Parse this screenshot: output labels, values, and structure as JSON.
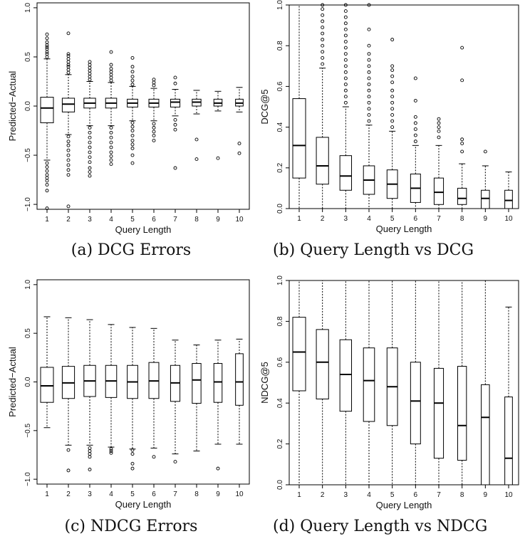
{
  "chart_data": [
    {
      "type": "box",
      "caption": "(a) DCG Errors",
      "xlabel": "Query Length",
      "ylabel": "Predicted−Actual",
      "ylim": [
        -1.05,
        1.05
      ],
      "yticks": [
        -1.0,
        -0.5,
        0.0,
        0.5,
        1.0
      ],
      "ytick_labels": [
        "−1.0",
        "−0.5",
        "0.0",
        "0.5",
        "1.0"
      ],
      "categories": [
        "1",
        "2",
        "3",
        "4",
        "5",
        "6",
        "7",
        "8",
        "9",
        "10"
      ],
      "boxes": [
        {
          "whisker_low": -0.55,
          "q1": -0.17,
          "median": -0.02,
          "q3": 0.09,
          "whisker_high": 0.48,
          "outliers": [
            0.5,
            0.53,
            0.55,
            0.58,
            0.6,
            0.62,
            0.65,
            0.69,
            0.73,
            -0.58,
            -0.62,
            -0.66,
            -0.7,
            -0.73,
            -0.76,
            -0.8,
            -0.86,
            -1.04
          ]
        },
        {
          "whisker_low": -0.29,
          "q1": -0.06,
          "median": 0.02,
          "q3": 0.08,
          "whisker_high": 0.32,
          "outliers": [
            0.34,
            0.37,
            0.4,
            0.42,
            0.45,
            0.48,
            0.51,
            0.53,
            0.74,
            -0.31,
            -0.36,
            -0.4,
            -0.45,
            -0.5,
            -0.55,
            -0.6,
            -0.65,
            -0.7,
            -1.02
          ]
        },
        {
          "whisker_low": -0.2,
          "q1": -0.02,
          "median": 0.03,
          "q3": 0.08,
          "whisker_high": 0.25,
          "outliers": [
            0.27,
            0.3,
            0.33,
            0.36,
            0.39,
            0.42,
            0.45,
            -0.22,
            -0.27,
            -0.32,
            -0.37,
            -0.42,
            -0.47,
            -0.52,
            -0.57,
            -0.63,
            -0.67,
            -0.71
          ]
        },
        {
          "whisker_low": -0.2,
          "q1": -0.02,
          "median": 0.03,
          "q3": 0.08,
          "whisker_high": 0.24,
          "outliers": [
            0.26,
            0.29,
            0.32,
            0.35,
            0.38,
            0.42,
            0.55,
            -0.22,
            -0.27,
            -0.32,
            -0.37,
            -0.42,
            -0.47,
            -0.51,
            -0.55,
            -0.59
          ]
        },
        {
          "whisker_low": -0.15,
          "q1": -0.01,
          "median": 0.03,
          "q3": 0.07,
          "whisker_high": 0.2,
          "outliers": [
            0.22,
            0.26,
            0.3,
            0.35,
            0.4,
            0.49,
            -0.17,
            -0.21,
            -0.25,
            -0.3,
            -0.35,
            -0.39,
            -0.43,
            -0.5,
            -0.58
          ]
        },
        {
          "whisker_low": -0.15,
          "q1": -0.01,
          "median": 0.03,
          "q3": 0.07,
          "whisker_high": 0.18,
          "outliers": [
            0.21,
            0.24,
            0.27,
            -0.18,
            -0.22,
            -0.26,
            -0.3,
            -0.35
          ]
        },
        {
          "whisker_low": -0.1,
          "q1": -0.01,
          "median": 0.04,
          "q3": 0.07,
          "whisker_high": 0.17,
          "outliers": [
            0.23,
            0.29,
            -0.14,
            -0.19,
            -0.24,
            -0.63
          ]
        },
        {
          "whisker_low": -0.08,
          "q1": 0.0,
          "median": 0.04,
          "q3": 0.07,
          "whisker_high": 0.16,
          "outliers": [
            -0.34,
            -0.54
          ]
        },
        {
          "whisker_low": -0.05,
          "q1": 0.0,
          "median": 0.03,
          "q3": 0.07,
          "whisker_high": 0.15,
          "outliers": [
            -0.53
          ]
        },
        {
          "whisker_low": -0.06,
          "q1": 0.0,
          "median": 0.03,
          "q3": 0.07,
          "whisker_high": 0.19,
          "outliers": [
            -0.38,
            -0.48
          ]
        }
      ]
    },
    {
      "type": "box",
      "caption": "(b) Query Length vs DCG",
      "xlabel": "Query Length",
      "ylabel": "DCG@5",
      "ylim": [
        0.0,
        1.0
      ],
      "yticks": [
        0.0,
        0.2,
        0.4,
        0.6,
        0.8,
        1.0
      ],
      "ytick_labels": [
        "0.0",
        "0.2",
        "0.4",
        "0.6",
        "0.8",
        "1.0"
      ],
      "categories": [
        "1",
        "2",
        "3",
        "4",
        "5",
        "6",
        "7",
        "8",
        "9",
        "10"
      ],
      "boxes": [
        {
          "whisker_low": 0.0,
          "q1": 0.15,
          "median": 0.31,
          "q3": 0.54,
          "whisker_high": 1.0,
          "outliers": []
        },
        {
          "whisker_low": 0.0,
          "q1": 0.12,
          "median": 0.21,
          "q3": 0.35,
          "whisker_high": 0.69,
          "outliers": [
            0.71,
            0.74,
            0.77,
            0.8,
            0.83,
            0.86,
            0.89,
            0.92,
            0.95,
            0.98,
            1.0
          ]
        },
        {
          "whisker_low": 0.0,
          "q1": 0.09,
          "median": 0.16,
          "q3": 0.26,
          "whisker_high": 0.5,
          "outliers": [
            0.52,
            0.55,
            0.58,
            0.61,
            0.64,
            0.67,
            0.7,
            0.73,
            0.76,
            0.79,
            0.82,
            0.85,
            0.88,
            0.91,
            0.94,
            0.97,
            1.0
          ]
        },
        {
          "whisker_low": 0.0,
          "q1": 0.07,
          "median": 0.14,
          "q3": 0.21,
          "whisker_high": 0.41,
          "outliers": [
            0.43,
            0.46,
            0.49,
            0.52,
            0.55,
            0.58,
            0.61,
            0.64,
            0.67,
            0.7,
            0.73,
            0.76,
            0.8,
            0.88,
            1.0
          ]
        },
        {
          "whisker_low": 0.0,
          "q1": 0.05,
          "median": 0.12,
          "q3": 0.19,
          "whisker_high": 0.38,
          "outliers": [
            0.4,
            0.43,
            0.46,
            0.49,
            0.52,
            0.55,
            0.58,
            0.62,
            0.65,
            0.68,
            0.7,
            0.83
          ]
        },
        {
          "whisker_low": 0.0,
          "q1": 0.03,
          "median": 0.1,
          "q3": 0.17,
          "whisker_high": 0.31,
          "outliers": [
            0.33,
            0.36,
            0.39,
            0.42,
            0.45,
            0.53,
            0.64
          ]
        },
        {
          "whisker_low": 0.0,
          "q1": 0.02,
          "median": 0.08,
          "q3": 0.15,
          "whisker_high": 0.31,
          "outliers": [
            0.35,
            0.38,
            0.4,
            0.42,
            0.44
          ]
        },
        {
          "whisker_low": 0.0,
          "q1": 0.02,
          "median": 0.05,
          "q3": 0.1,
          "whisker_high": 0.22,
          "outliers": [
            0.28,
            0.32,
            0.34,
            0.63,
            0.79
          ]
        },
        {
          "whisker_low": 0.0,
          "q1": 0.0,
          "median": 0.05,
          "q3": 0.09,
          "whisker_high": 0.21,
          "outliers": [
            0.28
          ]
        },
        {
          "whisker_low": 0.0,
          "q1": 0.0,
          "median": 0.04,
          "q3": 0.09,
          "whisker_high": 0.18,
          "outliers": []
        }
      ]
    },
    {
      "type": "box",
      "caption": "(c) NDCG Errors",
      "xlabel": "Query Length",
      "ylabel": "Predicted−Actual",
      "ylim": [
        -1.05,
        1.05
      ],
      "yticks": [
        -1.0,
        -0.5,
        0.0,
        0.5,
        1.0
      ],
      "ytick_labels": [
        "−1.0",
        "−0.5",
        "0.0",
        "0.5",
        "1.0"
      ],
      "categories": [
        "1",
        "2",
        "3",
        "4",
        "5",
        "6",
        "7",
        "8",
        "9",
        "10"
      ],
      "boxes": [
        {
          "whisker_low": -0.47,
          "q1": -0.21,
          "median": -0.04,
          "q3": 0.15,
          "whisker_high": 0.67,
          "outliers": []
        },
        {
          "whisker_low": -0.65,
          "q1": -0.17,
          "median": -0.01,
          "q3": 0.16,
          "whisker_high": 0.66,
          "outliers": [
            -0.7,
            -0.91
          ]
        },
        {
          "whisker_low": -0.65,
          "q1": -0.15,
          "median": 0.01,
          "q3": 0.17,
          "whisker_high": 0.64,
          "outliers": [
            -0.68,
            -0.71,
            -0.74,
            -0.77,
            -0.9
          ]
        },
        {
          "whisker_low": -0.67,
          "q1": -0.16,
          "median": 0.01,
          "q3": 0.17,
          "whisker_high": 0.59,
          "outliers": [
            -0.69,
            -0.71,
            -0.73
          ]
        },
        {
          "whisker_low": -0.69,
          "q1": -0.17,
          "median": 0.0,
          "q3": 0.17,
          "whisker_high": 0.56,
          "outliers": [
            -0.7,
            -0.74,
            -0.84,
            -0.89
          ]
        },
        {
          "whisker_low": -0.68,
          "q1": -0.17,
          "median": 0.01,
          "q3": 0.2,
          "whisker_high": 0.55,
          "outliers": [
            -0.77
          ]
        },
        {
          "whisker_low": -0.74,
          "q1": -0.2,
          "median": -0.01,
          "q3": 0.17,
          "whisker_high": 0.43,
          "outliers": [
            -0.82
          ]
        },
        {
          "whisker_low": -0.71,
          "q1": -0.22,
          "median": 0.02,
          "q3": 0.19,
          "whisker_high": 0.38,
          "outliers": []
        },
        {
          "whisker_low": -0.64,
          "q1": -0.21,
          "median": 0.0,
          "q3": 0.19,
          "whisker_high": 0.43,
          "outliers": [
            -0.89
          ]
        },
        {
          "whisker_low": -0.64,
          "q1": -0.24,
          "median": 0.0,
          "q3": 0.29,
          "whisker_high": 0.44,
          "outliers": []
        }
      ]
    },
    {
      "type": "box",
      "caption": "(d) Query Length vs NDCG",
      "xlabel": "Query Length",
      "ylabel": "NDCG@5",
      "ylim": [
        0.0,
        1.0
      ],
      "yticks": [
        0.0,
        0.2,
        0.4,
        0.6,
        0.8,
        1.0
      ],
      "ytick_labels": [
        "0.0",
        "0.2",
        "0.4",
        "0.6",
        "0.8",
        "1.0"
      ],
      "categories": [
        "1",
        "2",
        "3",
        "4",
        "5",
        "6",
        "7",
        "8",
        "9",
        "10"
      ],
      "boxes": [
        {
          "whisker_low": 0.0,
          "q1": 0.46,
          "median": 0.65,
          "q3": 0.82,
          "whisker_high": 1.0,
          "outliers": []
        },
        {
          "whisker_low": 0.0,
          "q1": 0.42,
          "median": 0.6,
          "q3": 0.76,
          "whisker_high": 1.0,
          "outliers": []
        },
        {
          "whisker_low": 0.0,
          "q1": 0.36,
          "median": 0.54,
          "q3": 0.71,
          "whisker_high": 1.0,
          "outliers": []
        },
        {
          "whisker_low": 0.0,
          "q1": 0.31,
          "median": 0.51,
          "q3": 0.67,
          "whisker_high": 1.0,
          "outliers": []
        },
        {
          "whisker_low": 0.0,
          "q1": 0.29,
          "median": 0.48,
          "q3": 0.67,
          "whisker_high": 1.0,
          "outliers": []
        },
        {
          "whisker_low": 0.0,
          "q1": 0.2,
          "median": 0.41,
          "q3": 0.6,
          "whisker_high": 1.0,
          "outliers": []
        },
        {
          "whisker_low": 0.0,
          "q1": 0.13,
          "median": 0.4,
          "q3": 0.57,
          "whisker_high": 1.0,
          "outliers": []
        },
        {
          "whisker_low": 0.0,
          "q1": 0.12,
          "median": 0.29,
          "q3": 0.58,
          "whisker_high": 1.0,
          "outliers": []
        },
        {
          "whisker_low": 0.0,
          "q1": 0.0,
          "median": 0.33,
          "q3": 0.49,
          "whisker_high": 1.0,
          "outliers": []
        },
        {
          "whisker_low": 0.0,
          "q1": 0.0,
          "median": 0.13,
          "q3": 0.43,
          "whisker_high": 0.87,
          "outliers": []
        }
      ]
    }
  ]
}
